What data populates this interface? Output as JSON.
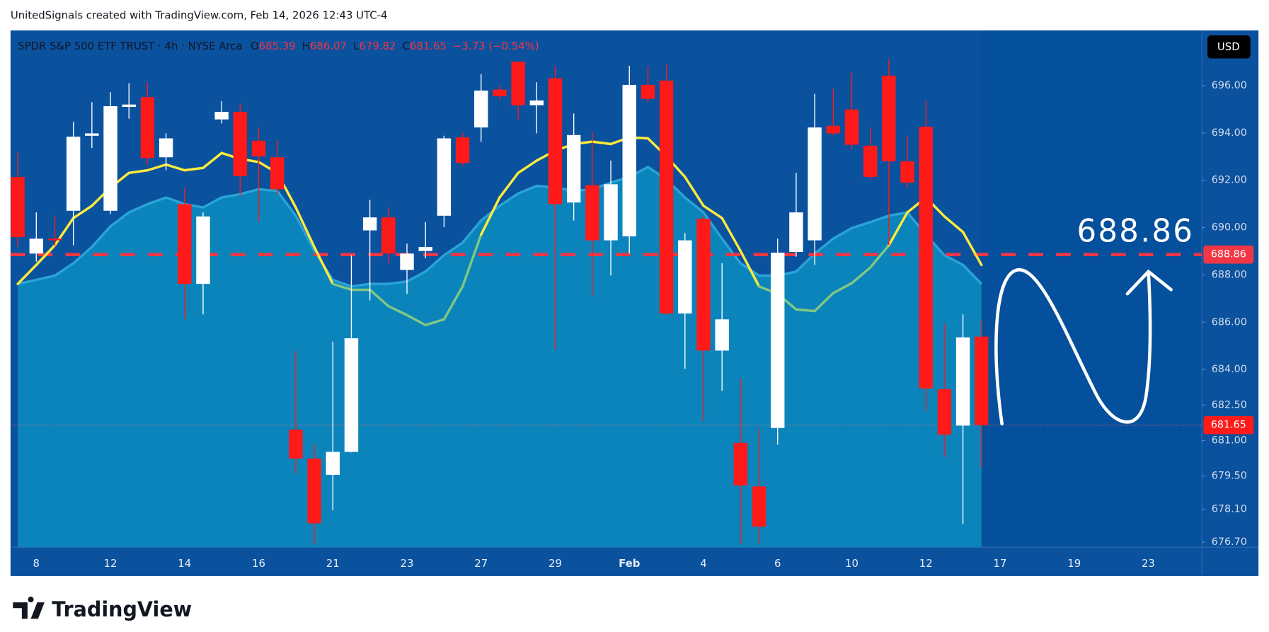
{
  "header": {
    "caption": "UnitedSignals created with TradingView.com, Feb 14, 2026 12:43 UTC-4",
    "brand": "TradingView"
  },
  "chart_data": {
    "type": "candlestick",
    "title": "SPDR S&P 500 ETF TRUST · 4h · NYSE Arca",
    "ohlc_labels": [
      "O",
      "H",
      "L",
      "C"
    ],
    "change": "−3.73 (−0.54%)",
    "currency": "USD",
    "categories": [
      null,
      "8",
      null,
      null,
      null,
      "12",
      null,
      null,
      null,
      "14",
      null,
      null,
      null,
      "16",
      null,
      null,
      null,
      "21",
      null,
      null,
      null,
      "23",
      null,
      null,
      null,
      "27",
      null,
      null,
      null,
      "29",
      null,
      null,
      null,
      "Feb",
      null,
      null,
      null,
      "4",
      null,
      null,
      null,
      "6",
      null,
      null,
      null,
      "10",
      null,
      null,
      null,
      "12",
      null,
      null,
      null,
      "17",
      null,
      null,
      null,
      "19",
      null,
      null,
      null,
      "23",
      null,
      null
    ],
    "open": [
      692.14,
      688.9,
      689.53,
      690.71,
      693.88,
      690.71,
      695.1,
      695.51,
      692.97,
      690.99,
      687.62,
      694.57,
      694.89,
      693.67,
      692.97,
      681.46,
      680.24,
      679.55,
      680.52,
      689.88,
      690.43,
      688.21,
      689.01,
      690.5,
      693.81,
      694.23,
      695.83,
      697.01,
      695.17,
      696.31,
      691.06,
      691.79,
      689.46,
      689.63,
      696.03,
      696.21,
      686.37,
      690.37,
      684.8,
      680.9,
      679.06,
      681.53,
      688.97,
      689.46,
      694.3,
      694.99,
      693.46,
      696.42,
      692.8,
      694.26,
      683.17,
      681.63,
      685.39,
      null,
      null,
      null,
      null,
      null,
      null,
      null,
      null,
      null,
      null,
      null
    ],
    "high": [
      693.18,
      690.64,
      690.5,
      694.47,
      695.3,
      695.72,
      696.1,
      696.14,
      693.98,
      691.69,
      690.64,
      695.34,
      695.23,
      694.23,
      693.7,
      684.77,
      680.83,
      685.18,
      688.83,
      691.17,
      690.85,
      689.32,
      690.23,
      693.88,
      694.0,
      696.49,
      696.0,
      697.01,
      696.14,
      696.83,
      694.82,
      694.05,
      692.83,
      696.83,
      696.83,
      696.9,
      689.77,
      690.5,
      688.49,
      683.62,
      681.53,
      689.53,
      692.31,
      695.65,
      695.86,
      696.56,
      694.23,
      697.11,
      693.88,
      695.37,
      685.95,
      686.33,
      686.07,
      null,
      null,
      null,
      null,
      null,
      null,
      null,
      null,
      null,
      null,
      null
    ],
    "low": [
      689.18,
      688.56,
      689.2,
      689.25,
      693.36,
      690.57,
      694.6,
      692.66,
      692.42,
      686.12,
      686.33,
      694.4,
      691.34,
      690.23,
      691.4,
      679.62,
      676.6,
      678.05,
      680.5,
      686.92,
      688.5,
      687.2,
      688.7,
      690.02,
      692.6,
      693.63,
      695.4,
      694.57,
      693.98,
      684.83,
      690.3,
      687.1,
      687.97,
      688.9,
      695.3,
      686.3,
      684.03,
      681.81,
      683.1,
      676.6,
      676.6,
      680.83,
      688.77,
      688.42,
      693.9,
      693.3,
      692.0,
      689.25,
      691.69,
      682.23,
      680.31,
      677.46,
      679.82,
      null,
      null,
      null,
      null,
      null,
      null,
      null,
      null,
      null,
      null,
      null
    ],
    "close": [
      689.6,
      689.53,
      689.46,
      693.84,
      693.98,
      695.13,
      695.2,
      692.94,
      693.77,
      687.62,
      690.47,
      694.89,
      692.17,
      693.01,
      691.62,
      680.24,
      677.5,
      680.52,
      685.32,
      690.43,
      688.9,
      688.9,
      689.18,
      693.77,
      692.73,
      695.79,
      695.55,
      695.17,
      695.37,
      690.99,
      693.91,
      689.46,
      691.83,
      696.03,
      695.44,
      686.37,
      689.46,
      684.8,
      686.12,
      679.1,
      677.36,
      688.94,
      690.64,
      694.23,
      693.98,
      693.5,
      692.14,
      692.8,
      691.9,
      683.2,
      681.25,
      685.36,
      681.65,
      null,
      null,
      null,
      null,
      null,
      null,
      null,
      null,
      null,
      null,
      null
    ],
    "up_color": "#ffffff",
    "down_color": "#ff1a1a",
    "ma_area": {
      "color": "#0a84bb",
      "line_color": "#2aa3d6",
      "values": [
        687.62,
        687.79,
        687.97,
        688.49,
        689.18,
        690.05,
        690.64,
        690.99,
        691.27,
        690.99,
        690.85,
        691.27,
        691.41,
        691.62,
        691.55,
        690.5,
        689.01,
        687.79,
        687.51,
        687.62,
        687.62,
        687.72,
        688.14,
        688.83,
        689.36,
        690.3,
        690.92,
        691.44,
        691.76,
        691.69,
        691.55,
        691.62,
        691.9,
        692.14,
        692.56,
        692.03,
        691.27,
        690.64,
        689.53,
        688.49,
        687.97,
        687.97,
        688.14,
        688.9,
        689.53,
        689.98,
        690.23,
        690.5,
        690.64,
        689.7,
        688.83,
        688.42,
        687.62,
        null,
        null,
        null,
        null,
        null,
        null,
        null,
        null,
        null,
        null,
        null
      ]
    },
    "ma_line": {
      "color": "#ffeb3b",
      "below_color": "#81c784",
      "values": [
        687.62,
        688.42,
        689.25,
        690.4,
        690.92,
        691.69,
        692.31,
        692.42,
        692.66,
        692.42,
        692.52,
        693.15,
        692.9,
        692.77,
        692.31,
        690.85,
        689.18,
        687.62,
        687.37,
        687.37,
        686.68,
        686.3,
        685.88,
        686.12,
        687.51,
        689.7,
        691.27,
        692.31,
        692.83,
        693.25,
        693.53,
        693.63,
        693.53,
        693.81,
        693.77,
        693.01,
        692.14,
        690.92,
        690.4,
        689.01,
        687.51,
        687.2,
        686.54,
        686.47,
        687.23,
        687.65,
        688.31,
        689.25,
        690.64,
        691.27,
        690.47,
        689.81,
        688.42,
        null,
        null,
        null,
        null,
        null,
        null,
        null,
        null,
        null,
        null,
        null
      ]
    },
    "hline": {
      "value": 688.86,
      "color": "#f23645"
    },
    "ylim": [
      676.49,
      698.33
    ],
    "yticks": [
      {
        "value": 696,
        "label": "696.00"
      },
      {
        "value": 694,
        "label": "694.00"
      },
      {
        "value": 692,
        "label": "692.00"
      },
      {
        "value": 690,
        "label": "690.00"
      },
      {
        "value": 688,
        "label": "688.00"
      },
      {
        "value": 686,
        "label": "686.00"
      },
      {
        "value": 684,
        "label": "684.00"
      },
      {
        "value": 682.5,
        "label": "682.50"
      },
      {
        "value": 681,
        "label": "681.00"
      },
      {
        "value": 679.5,
        "label": "679.50"
      },
      {
        "value": 678.1,
        "label": "678.10"
      },
      {
        "value": 676.7,
        "label": "676.70"
      }
    ],
    "grid": false
  }
}
